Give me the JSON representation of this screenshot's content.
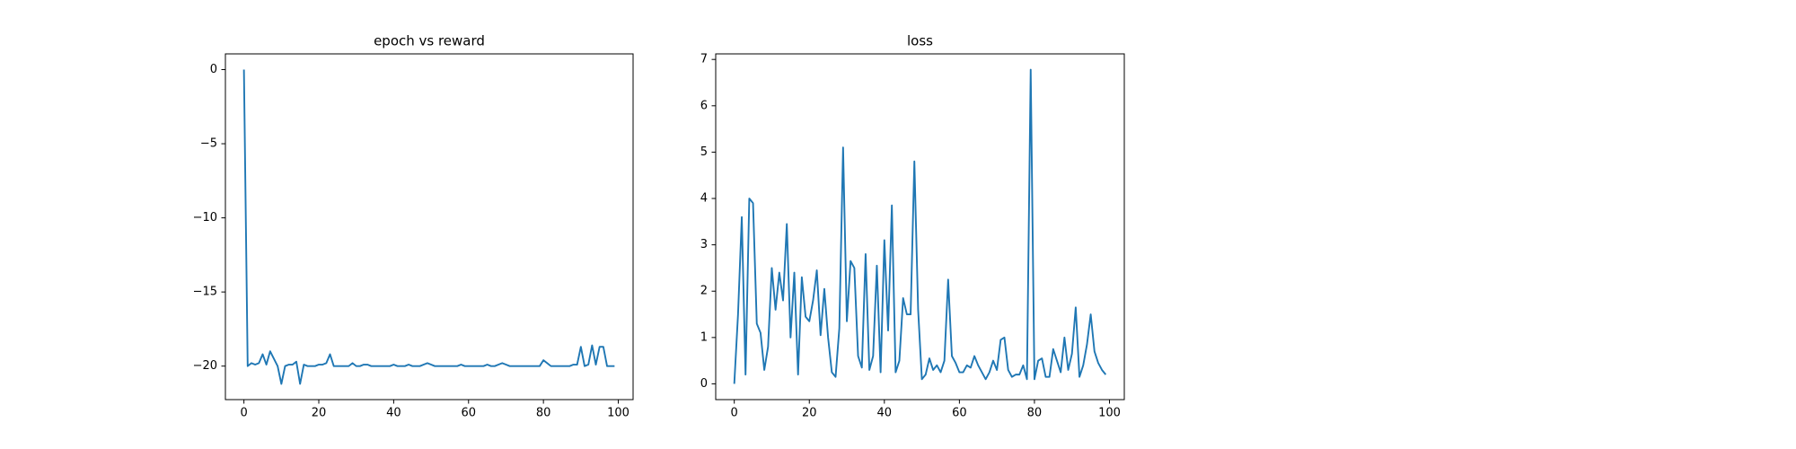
{
  "chart_data": [
    {
      "type": "line",
      "title": "epoch vs reward",
      "color": "#1f77b4",
      "x": [
        0,
        1,
        2,
        3,
        4,
        5,
        6,
        7,
        8,
        9,
        10,
        11,
        12,
        13,
        14,
        15,
        16,
        17,
        18,
        19,
        20,
        21,
        22,
        23,
        24,
        25,
        26,
        27,
        28,
        29,
        30,
        31,
        32,
        33,
        34,
        35,
        36,
        37,
        38,
        39,
        40,
        41,
        42,
        43,
        44,
        45,
        46,
        47,
        48,
        49,
        50,
        51,
        52,
        53,
        54,
        55,
        56,
        57,
        58,
        59,
        60,
        61,
        62,
        63,
        64,
        65,
        66,
        67,
        68,
        69,
        70,
        71,
        72,
        73,
        74,
        75,
        76,
        77,
        78,
        79,
        80,
        81,
        82,
        83,
        84,
        85,
        86,
        87,
        88,
        89,
        90,
        91,
        92,
        93,
        94,
        95,
        96,
        97,
        98,
        99
      ],
      "values": [
        0,
        -20,
        -19.8,
        -19.9,
        -19.8,
        -19.2,
        -19.9,
        -19,
        -19.5,
        -20,
        -21.2,
        -20,
        -19.9,
        -19.9,
        -19.7,
        -21.2,
        -19.9,
        -20,
        -20,
        -20,
        -19.9,
        -19.9,
        -19.8,
        -19.2,
        -20,
        -20,
        -20,
        -20,
        -20,
        -19.8,
        -20,
        -20,
        -19.9,
        -19.9,
        -20,
        -20,
        -20,
        -20,
        -20,
        -20,
        -19.9,
        -20,
        -20,
        -20,
        -19.9,
        -20,
        -20,
        -20,
        -19.9,
        -19.8,
        -19.9,
        -20,
        -20,
        -20,
        -20,
        -20,
        -20,
        -20,
        -19.9,
        -20,
        -20,
        -20,
        -20,
        -20,
        -20,
        -19.9,
        -20,
        -20,
        -19.9,
        -19.8,
        -19.9,
        -20,
        -20,
        -20,
        -20,
        -20,
        -20,
        -20,
        -20,
        -20,
        -19.6,
        -19.8,
        -20,
        -20,
        -20,
        -20,
        -20,
        -20,
        -19.9,
        -19.9,
        -18.7,
        -20,
        -19.9,
        -18.6,
        -19.9,
        -18.7,
        -18.7,
        -20,
        -20,
        -20
      ],
      "xlim": [
        -4.95,
        103.95
      ],
      "ylim": [
        -22.26,
        1.06
      ],
      "xticks": [
        0,
        20,
        40,
        60,
        80,
        100
      ],
      "yticks": [
        0,
        {
          "value": -5,
          "label": "−5"
        },
        {
          "value": -10,
          "label": "−10"
        },
        {
          "value": -15,
          "label": "−15"
        },
        {
          "value": -20,
          "label": "−20"
        }
      ]
    },
    {
      "type": "line",
      "title": "loss",
      "color": "#1f77b4",
      "x": [
        0,
        1,
        2,
        3,
        4,
        5,
        6,
        7,
        8,
        9,
        10,
        11,
        12,
        13,
        14,
        15,
        16,
        17,
        18,
        19,
        20,
        21,
        22,
        23,
        24,
        25,
        26,
        27,
        28,
        29,
        30,
        31,
        32,
        33,
        34,
        35,
        36,
        37,
        38,
        39,
        40,
        41,
        42,
        43,
        44,
        45,
        46,
        47,
        48,
        49,
        50,
        51,
        52,
        53,
        54,
        55,
        56,
        57,
        58,
        59,
        60,
        61,
        62,
        63,
        64,
        65,
        66,
        67,
        68,
        69,
        70,
        71,
        72,
        73,
        74,
        75,
        76,
        77,
        78,
        79,
        80,
        81,
        82,
        83,
        84,
        85,
        86,
        87,
        88,
        89,
        90,
        91,
        92,
        93,
        94,
        95,
        96,
        97,
        98,
        99
      ],
      "values": [
        0,
        1.5,
        3.6,
        0.2,
        4.0,
        3.9,
        1.3,
        1.1,
        0.3,
        0.8,
        2.5,
        1.6,
        2.4,
        1.8,
        3.45,
        1.0,
        2.4,
        0.2,
        2.3,
        1.45,
        1.35,
        1.8,
        2.45,
        1.05,
        2.05,
        1.0,
        0.25,
        0.15,
        1.2,
        5.1,
        1.35,
        2.65,
        2.5,
        0.6,
        0.35,
        2.8,
        0.3,
        0.6,
        2.55,
        0.25,
        3.1,
        1.15,
        3.85,
        0.25,
        0.5,
        1.85,
        1.5,
        1.5,
        4.8,
        1.6,
        0.1,
        0.2,
        0.55,
        0.3,
        0.4,
        0.25,
        0.5,
        2.25,
        0.6,
        0.45,
        0.25,
        0.25,
        0.4,
        0.35,
        0.6,
        0.4,
        0.25,
        0.1,
        0.25,
        0.5,
        0.3,
        0.95,
        1.0,
        0.3,
        0.15,
        0.2,
        0.2,
        0.4,
        0.1,
        6.78,
        0.1,
        0.5,
        0.55,
        0.15,
        0.15,
        0.75,
        0.5,
        0.25,
        1.0,
        0.3,
        0.65,
        1.65,
        0.15,
        0.4,
        0.85,
        1.5,
        0.7,
        0.45,
        0.3,
        0.2
      ],
      "xlim": [
        -4.95,
        103.95
      ],
      "ylim": [
        -0.34,
        7.12
      ],
      "xticks": [
        0,
        20,
        40,
        60,
        80,
        100
      ],
      "yticks": [
        0,
        1,
        2,
        3,
        4,
        5,
        6,
        7
      ]
    }
  ]
}
